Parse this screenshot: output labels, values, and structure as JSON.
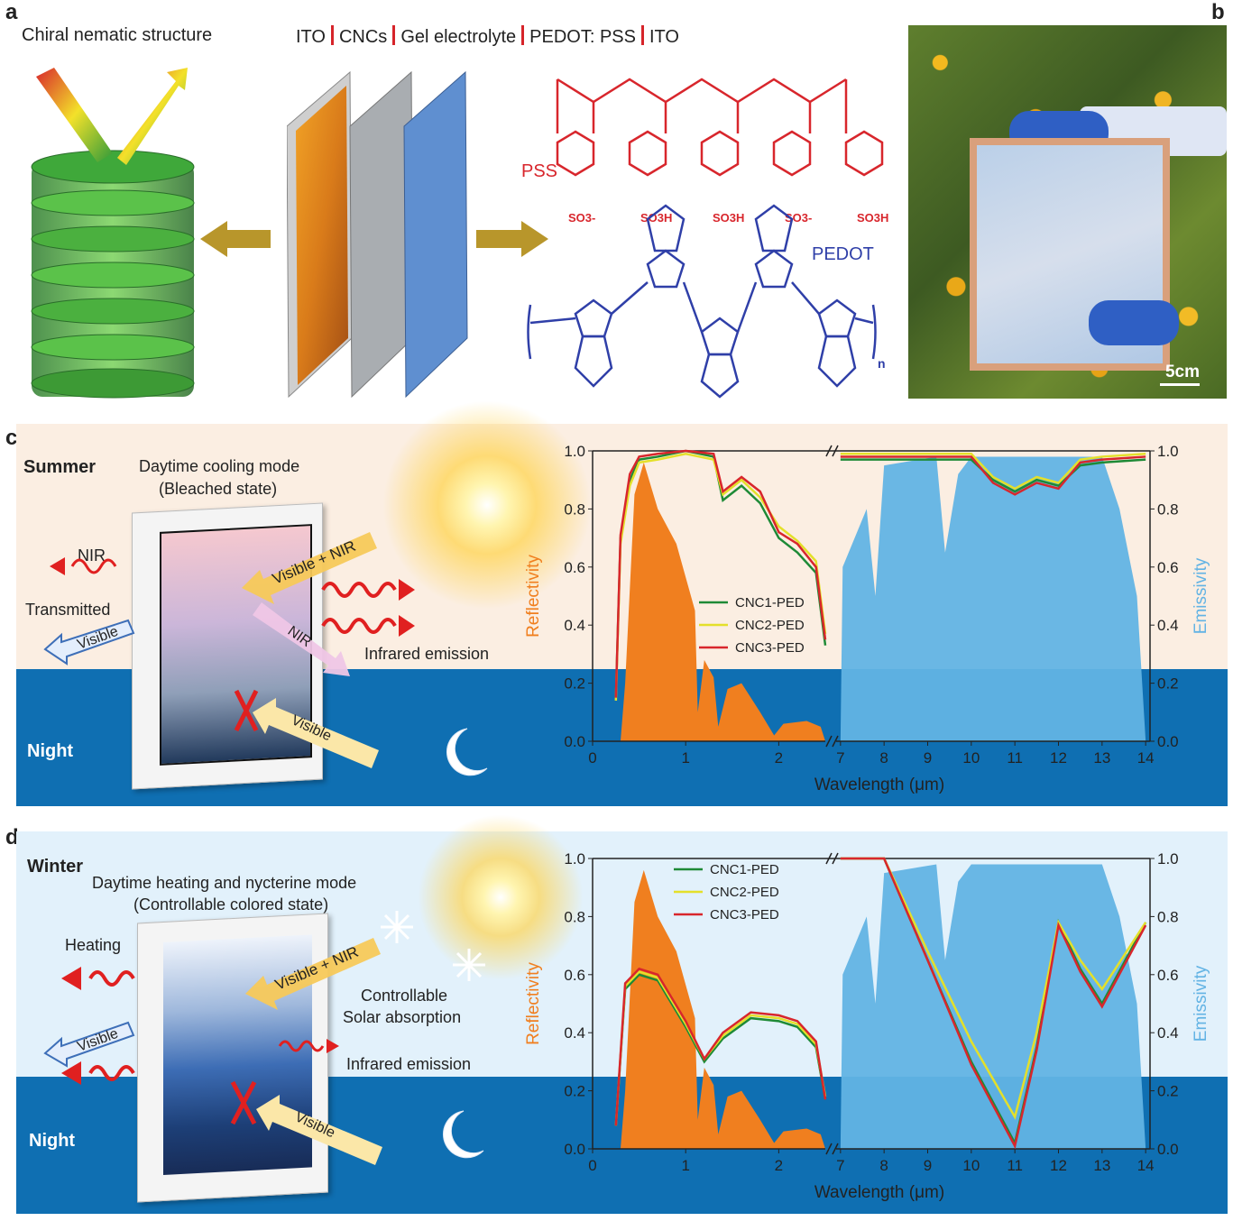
{
  "panels": {
    "a": "a",
    "b": "b",
    "c": "c",
    "d": "d"
  },
  "panel_a": {
    "structure_title": "Chiral nematic structure",
    "layers": [
      "ITO",
      "CNCs",
      "Gel electrolyte",
      "PEDOT: PSS",
      "ITO"
    ],
    "pss_label": "PSS",
    "pedot_label": "PEDOT",
    "pss_groups": [
      "SO3-",
      "SO3H",
      "SO3H",
      "SO3-",
      "SO3H"
    ],
    "pedot_subscript": "n"
  },
  "panel_b": {
    "scale_bar": "5cm"
  },
  "panel_c": {
    "season": "Summer",
    "mode_title": "Daytime cooling mode",
    "mode_subtitle": "(Bleached state)",
    "nir": "NIR",
    "transmitted": "Transmitted",
    "visible": "Visible",
    "visible_nir": "Visible + NIR",
    "nir_arrow": "NIR",
    "infrared_emission": "Infrared emission",
    "visible_night": "Visible",
    "night": "Night"
  },
  "panel_d": {
    "season": "Winter",
    "mode_title": "Daytime heating and nycterine mode",
    "mode_subtitle": "(Controllable colored state)",
    "heating": "Heating",
    "visible": "Visible",
    "visible_nir": "Visible + NIR",
    "controllable": "Controllable",
    "solar_absorption": "Solar absorption",
    "infrared_emission": "Infrared emission",
    "visible_night": "Visible",
    "night": "Night"
  },
  "colors": {
    "green": "#1e8a36",
    "yellow": "#e4e02a",
    "red": "#d8262c",
    "orange": "#f07f1f",
    "blue": "#62b3e4"
  },
  "chart_data": [
    {
      "type": "line",
      "panel": "c",
      "xlabel": "Wavelength (μm)",
      "ylabel_left": "Reflectivity",
      "ylabel_right": "Emissivity",
      "x_break": [
        2.5,
        7
      ],
      "xticks": [
        "0",
        "1",
        "2",
        "7",
        "8",
        "9",
        "10",
        "11",
        "12",
        "13",
        "14"
      ],
      "yticks": [
        "0.0",
        "0.2",
        "0.4",
        "0.6",
        "0.8",
        "1.0"
      ],
      "ylim": [
        0,
        1
      ],
      "series": [
        {
          "name": "CNC1-PED",
          "x": [
            0.25,
            0.3,
            0.4,
            0.5,
            0.7,
            1.0,
            1.3,
            1.4,
            1.6,
            1.8,
            2.0,
            2.2,
            2.4,
            2.5,
            7.0,
            8,
            9,
            10,
            10.5,
            11,
            11.5,
            12,
            12.5,
            13,
            14
          ],
          "y": [
            0.15,
            0.7,
            0.9,
            0.97,
            0.98,
            1.0,
            0.98,
            0.83,
            0.88,
            0.82,
            0.7,
            0.65,
            0.58,
            0.33,
            0.97,
            0.97,
            0.97,
            0.97,
            0.9,
            0.86,
            0.9,
            0.88,
            0.95,
            0.96,
            0.97
          ]
        },
        {
          "name": "CNC2-PED",
          "x": [
            0.25,
            0.3,
            0.4,
            0.5,
            0.7,
            1.0,
            1.3,
            1.4,
            1.6,
            1.8,
            2.0,
            2.2,
            2.4,
            2.5,
            7.0,
            8,
            9,
            10,
            10.5,
            11,
            11.5,
            12,
            12.5,
            13,
            14
          ],
          "y": [
            0.14,
            0.68,
            0.88,
            0.96,
            0.97,
            0.99,
            0.97,
            0.85,
            0.9,
            0.84,
            0.74,
            0.69,
            0.62,
            0.37,
            0.99,
            0.99,
            0.99,
            0.99,
            0.91,
            0.87,
            0.91,
            0.89,
            0.97,
            0.98,
            0.99
          ]
        },
        {
          "name": "CNC3-PED",
          "x": [
            0.25,
            0.3,
            0.4,
            0.5,
            0.7,
            1.0,
            1.3,
            1.4,
            1.6,
            1.8,
            2.0,
            2.2,
            2.4,
            2.5,
            7.0,
            8,
            9,
            10,
            10.5,
            11,
            11.5,
            12,
            12.5,
            13,
            14
          ],
          "y": [
            0.15,
            0.71,
            0.92,
            0.98,
            0.99,
            1.0,
            0.99,
            0.86,
            0.91,
            0.86,
            0.72,
            0.68,
            0.6,
            0.35,
            0.98,
            0.98,
            0.98,
            0.98,
            0.89,
            0.85,
            0.89,
            0.87,
            0.96,
            0.97,
            0.98
          ]
        }
      ]
    },
    {
      "type": "line",
      "panel": "d",
      "xlabel": "Wavelength (μm)",
      "ylabel_left": "Reflectivity",
      "ylabel_right": "Emissivity",
      "x_break": [
        2.5,
        7
      ],
      "xticks": [
        "0",
        "1",
        "2",
        "7",
        "8",
        "9",
        "10",
        "11",
        "12",
        "13",
        "14"
      ],
      "yticks": [
        "0.0",
        "0.2",
        "0.4",
        "0.6",
        "0.8",
        "1.0"
      ],
      "ylim": [
        0,
        1
      ],
      "series": [
        {
          "name": "CNC1-PED",
          "x": [
            0.25,
            0.35,
            0.5,
            0.7,
            1.0,
            1.2,
            1.4,
            1.7,
            2.0,
            2.2,
            2.4,
            2.5,
            7.0,
            8.0,
            9.0,
            10.0,
            11.0,
            11.5,
            12.0,
            12.5,
            13.0,
            14.0
          ],
          "y": [
            0.08,
            0.55,
            0.6,
            0.58,
            0.42,
            0.3,
            0.38,
            0.45,
            0.44,
            0.42,
            0.35,
            0.17,
            1.0,
            1.0,
            0.65,
            0.3,
            0.02,
            0.35,
            0.78,
            0.62,
            0.5,
            0.78
          ]
        },
        {
          "name": "CNC2-PED",
          "x": [
            0.25,
            0.35,
            0.5,
            0.7,
            1.0,
            1.2,
            1.4,
            1.7,
            2.0,
            2.2,
            2.4,
            2.5,
            7.0,
            8.0,
            9.0,
            10.0,
            11.0,
            11.5,
            12.0,
            12.5,
            13.0,
            14.0
          ],
          "y": [
            0.08,
            0.56,
            0.61,
            0.59,
            0.43,
            0.31,
            0.39,
            0.46,
            0.45,
            0.43,
            0.36,
            0.18,
            1.0,
            1.0,
            0.68,
            0.37,
            0.11,
            0.4,
            0.78,
            0.65,
            0.55,
            0.78
          ]
        },
        {
          "name": "CNC3-PED",
          "x": [
            0.25,
            0.35,
            0.5,
            0.7,
            1.0,
            1.2,
            1.4,
            1.7,
            2.0,
            2.2,
            2.4,
            2.5,
            7.0,
            8.0,
            9.0,
            10.0,
            11.0,
            11.5,
            12.0,
            12.5,
            13.0,
            14.0
          ],
          "y": [
            0.08,
            0.57,
            0.62,
            0.6,
            0.44,
            0.31,
            0.4,
            0.47,
            0.46,
            0.44,
            0.37,
            0.17,
            1.0,
            1.0,
            0.65,
            0.29,
            0.01,
            0.34,
            0.77,
            0.61,
            0.49,
            0.77
          ]
        }
      ]
    }
  ]
}
